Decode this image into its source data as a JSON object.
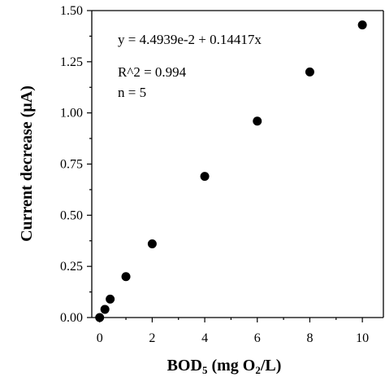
{
  "chart_data": {
    "type": "scatter",
    "title": "",
    "xlabel_main": "BOD",
    "xlabel_sub": "5",
    "xlabel_unit_pre": " (mg O",
    "xlabel_unit_sub": "2",
    "xlabel_unit_post": "/L)",
    "ylabel": "Current   decrease  (µA)",
    "xlim": [
      -0.3,
      10.8
    ],
    "ylim": [
      0,
      1.5
    ],
    "x_ticks": [
      0,
      2,
      4,
      6,
      8,
      10
    ],
    "x_tick_labels": [
      "0",
      "2",
      "4",
      "6",
      "8",
      "10"
    ],
    "y_ticks": [
      0,
      0.25,
      0.5,
      0.75,
      1.0,
      1.25,
      1.5
    ],
    "y_tick_labels": [
      "0.00",
      "0.25",
      "0.50",
      "0.75",
      "1.00",
      "1.25",
      "1.50"
    ],
    "grid": false,
    "series": [
      {
        "x": [
          0,
          0.2,
          0.4,
          1,
          2,
          4,
          6,
          8,
          10
        ],
        "y": [
          0,
          0.04,
          0.09,
          0.2,
          0.36,
          0.69,
          0.96,
          1.2,
          1.43
        ],
        "marker": "filled-circle",
        "color": "#000000"
      }
    ],
    "annotations": {
      "equation": "y = 4.4939e-2  + 0.14417x",
      "r_squared": "R^2 = 0.994",
      "n": "n = 5"
    }
  }
}
